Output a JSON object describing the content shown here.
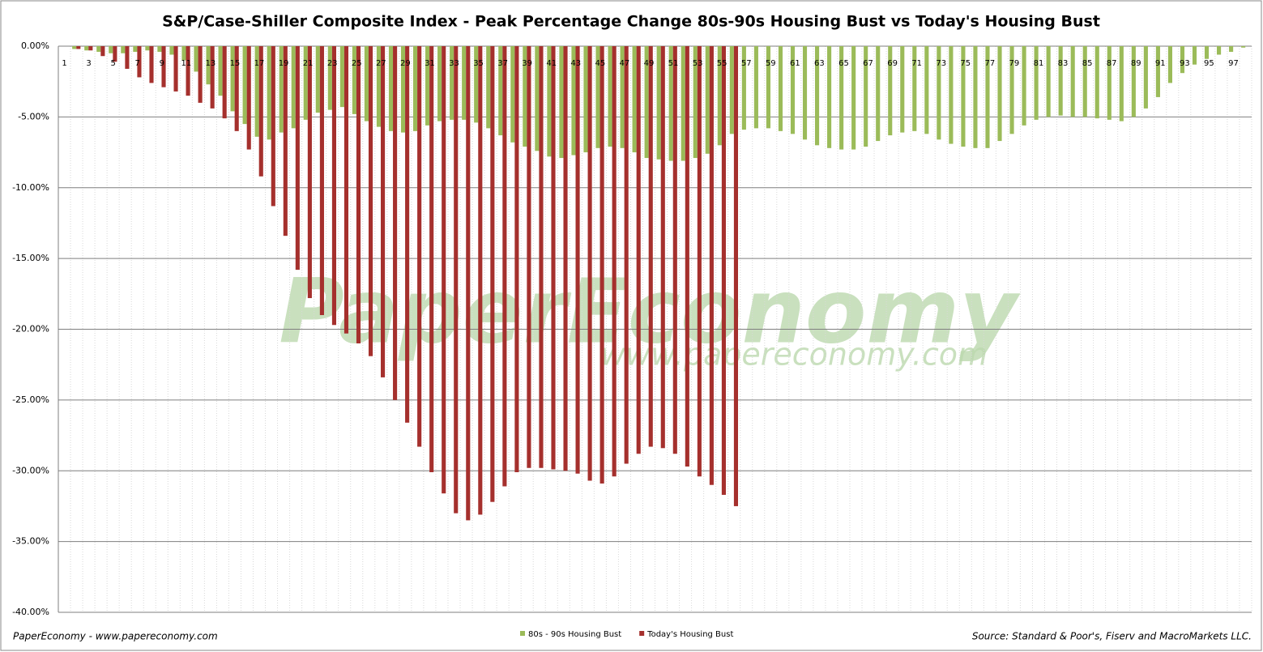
{
  "chart_data": {
    "type": "bar",
    "title": "S&P/Case-Shiller Composite Index - Peak Percentage Change 80s-90s Housing Bust vs Today's Housing Bust",
    "watermark": "PaperEconomy",
    "watermark_url": "www.papereconomy.com",
    "footer_left": "PaperEconomy - www.papereconomy.com",
    "source": "Source: Standard & Poor's, Fiserv and MacroMarkets LLC.",
    "categories": [
      "1",
      null,
      "3",
      null,
      "5",
      null,
      "7",
      null,
      "9",
      null,
      "11",
      null,
      "13",
      null,
      "15",
      null,
      "17",
      null,
      "19",
      null,
      "21",
      null,
      "23",
      null,
      "25",
      null,
      "27",
      null,
      "29",
      null,
      "31",
      null,
      "33",
      null,
      "35",
      null,
      "37",
      null,
      "39",
      null,
      "41",
      null,
      "43",
      null,
      "45",
      null,
      "47",
      null,
      "49",
      null,
      "51",
      null,
      "53",
      null,
      "55",
      null,
      "57",
      null,
      "59",
      null,
      "61",
      null,
      "63",
      null,
      "65",
      null,
      "67",
      null,
      "69",
      null,
      "71",
      null,
      "73",
      null,
      "75",
      null,
      "77",
      null,
      "79",
      null,
      "81",
      null,
      "83",
      null,
      "85",
      null,
      "87",
      null,
      "89",
      null,
      "91",
      null,
      "93",
      null,
      "95",
      null,
      "97",
      null
    ],
    "series": [
      {
        "name": "80s - 90s Housing Bust",
        "color": "#9bbb59",
        "values": [
          0,
          -0.2,
          -0.3,
          -0.4,
          -0.5,
          -0.5,
          -0.4,
          -0.3,
          -0.4,
          -0.6,
          -1.0,
          -1.8,
          -2.7,
          -3.5,
          -4.6,
          -5.5,
          -6.4,
          -6.6,
          -6.1,
          -5.8,
          -5.2,
          -4.7,
          -4.5,
          -4.3,
          -4.8,
          -5.3,
          -5.7,
          -6.0,
          -6.1,
          -6.0,
          -5.6,
          -5.3,
          -5.2,
          -5.2,
          -5.4,
          -5.8,
          -6.3,
          -6.8,
          -7.1,
          -7.4,
          -7.8,
          -7.9,
          -7.7,
          -7.5,
          -7.2,
          -7.1,
          -7.2,
          -7.5,
          -7.9,
          -8.0,
          -8.1,
          -8.1,
          -7.9,
          -7.6,
          -7.0,
          -6.2,
          -5.9,
          -5.8,
          -5.8,
          -6.0,
          -6.2,
          -6.6,
          -7.0,
          -7.2,
          -7.3,
          -7.3,
          -7.1,
          -6.7,
          -6.3,
          -6.1,
          -6.0,
          -6.2,
          -6.6,
          -6.9,
          -7.1,
          -7.2,
          -7.2,
          -6.7,
          -6.2,
          -5.6,
          -5.2,
          -5.0,
          -4.9,
          -5.0,
          -5.0,
          -5.1,
          -5.2,
          -5.3,
          -5.0,
          -4.4,
          -3.6,
          -2.6,
          -1.9,
          -1.3,
          -0.9,
          -0.6,
          -0.4,
          -0.1
        ]
      },
      {
        "name": "Today's Housing Bust",
        "color": "#a5302d",
        "values": [
          0,
          -0.2,
          -0.3,
          -0.7,
          -1.1,
          -1.6,
          -2.2,
          -2.6,
          -2.9,
          -3.2,
          -3.5,
          -4.0,
          -4.4,
          -5.1,
          -6.0,
          -7.3,
          -9.2,
          -11.3,
          -13.4,
          -15.8,
          -17.8,
          -19.0,
          -19.7,
          -20.3,
          -21.0,
          -21.9,
          -23.4,
          -25.0,
          -26.6,
          -28.3,
          -30.1,
          -31.6,
          -33.0,
          -33.5,
          -33.1,
          -32.2,
          -31.1,
          -30.1,
          -29.8,
          -29.8,
          -29.9,
          -30.0,
          -30.2,
          -30.7,
          -30.9,
          -30.4,
          -29.5,
          -28.8,
          -28.3,
          -28.4,
          -28.8,
          -29.7,
          -30.4,
          -31.0,
          -31.7,
          -32.5,
          null,
          null,
          null,
          null,
          null,
          null,
          null,
          null,
          null,
          null,
          null,
          null,
          null,
          null,
          null,
          null,
          null,
          null,
          null,
          null,
          null,
          null,
          null,
          null,
          null,
          null,
          null,
          null,
          null,
          null,
          null,
          null,
          null,
          null,
          null,
          null,
          null,
          null,
          null,
          null,
          null,
          null
        ]
      }
    ],
    "ylim": [
      -40,
      0
    ],
    "yticks": [
      {
        "value": 0,
        "label": "0.00%"
      },
      {
        "value": -5,
        "label": "-5.00%"
      },
      {
        "value": -10,
        "label": "-10.00%"
      },
      {
        "value": -15,
        "label": "-15.00%"
      },
      {
        "value": -20,
        "label": "-20.00%"
      },
      {
        "value": -25,
        "label": "-25.00%"
      },
      {
        "value": -30,
        "label": "-30.00%"
      },
      {
        "value": -35,
        "label": "-35.00%"
      },
      {
        "value": -40,
        "label": "-40.00%"
      }
    ],
    "grid": true,
    "legend": "bottom"
  }
}
